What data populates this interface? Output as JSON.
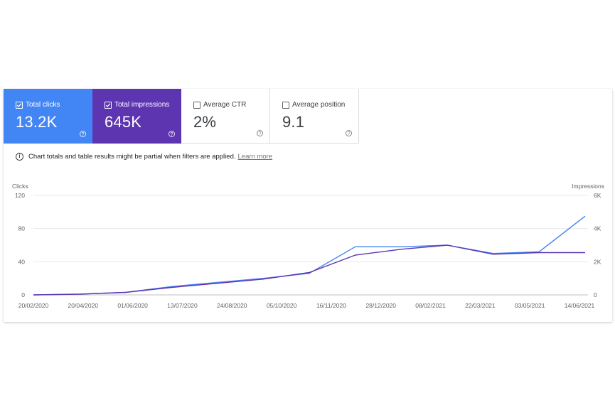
{
  "metrics": [
    {
      "label": "Total clicks",
      "value": "13.2K",
      "checked": true,
      "color": "#4285f4"
    },
    {
      "label": "Total impressions",
      "value": "645K",
      "checked": true,
      "color": "#5e35b1"
    },
    {
      "label": "Average CTR",
      "value": "2%",
      "checked": false
    },
    {
      "label": "Average position",
      "value": "9.1",
      "checked": false
    }
  ],
  "notice": {
    "text": "Chart totals and table results might be partial when filters are applied.",
    "link": "Learn more"
  },
  "chart_data": {
    "type": "line",
    "ylabel": "Clicks",
    "y2label": "Impressions",
    "ylim": [
      0,
      120
    ],
    "y2lim": [
      0,
      6000
    ],
    "yticks": [
      "120",
      "80",
      "40",
      "0"
    ],
    "y2ticks": [
      "6K",
      "4K",
      "2K",
      "0"
    ],
    "xticks": [
      "20/02/2020",
      "20/04/2020",
      "01/06/2020",
      "13/07/2020",
      "24/08/2020",
      "05/10/2020",
      "16/11/2020",
      "28/12/2020",
      "08/02/2021",
      "22/03/2021",
      "03/05/2021",
      "14/06/2021"
    ],
    "grid": true,
    "x": [
      "20/02/2020",
      "20/04/2020",
      "01/06/2020",
      "13/07/2020",
      "24/08/2020",
      "05/10/2020",
      "16/11/2020",
      "28/12/2020",
      "08/02/2021",
      "22/03/2021",
      "03/05/2021",
      "14/06/2021",
      "28/06/2021"
    ],
    "series": [
      {
        "name": "Clicks",
        "axis": "left",
        "color": "#4285f4",
        "values": [
          0,
          1,
          3,
          10,
          15,
          20,
          26,
          58,
          58,
          60,
          50,
          52,
          95
        ]
      },
      {
        "name": "Impressions",
        "axis": "right",
        "color": "#5e35b1",
        "values": [
          0,
          40,
          150,
          450,
          700,
          950,
          1350,
          2400,
          2750,
          3000,
          2450,
          2550,
          2550
        ]
      }
    ]
  }
}
